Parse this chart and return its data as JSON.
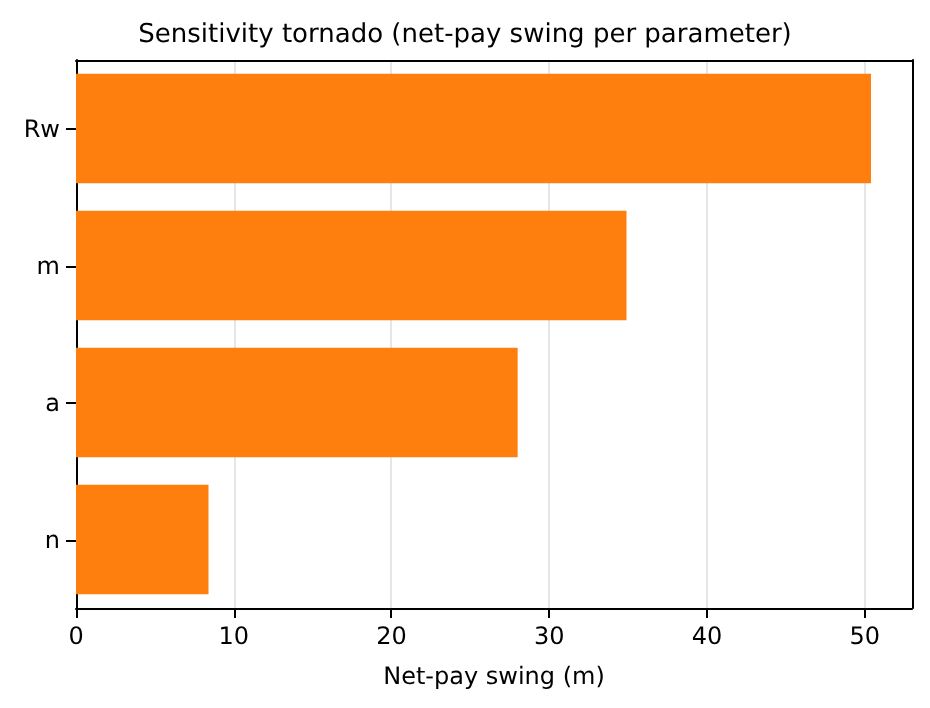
{
  "chart_data": {
    "type": "bar",
    "orientation": "horizontal",
    "title": "Sensitivity tornado (net-pay swing per parameter)",
    "xlabel": "Net-pay swing (m)",
    "categories": [
      "Rw",
      "m",
      "a",
      "n"
    ],
    "values": [
      50.4,
      34.9,
      28.0,
      8.4
    ],
    "color": "#ff7f0e",
    "xlim": [
      0,
      53
    ],
    "xticks": [
      0,
      10,
      20,
      30,
      40,
      50
    ],
    "grid": "x"
  }
}
